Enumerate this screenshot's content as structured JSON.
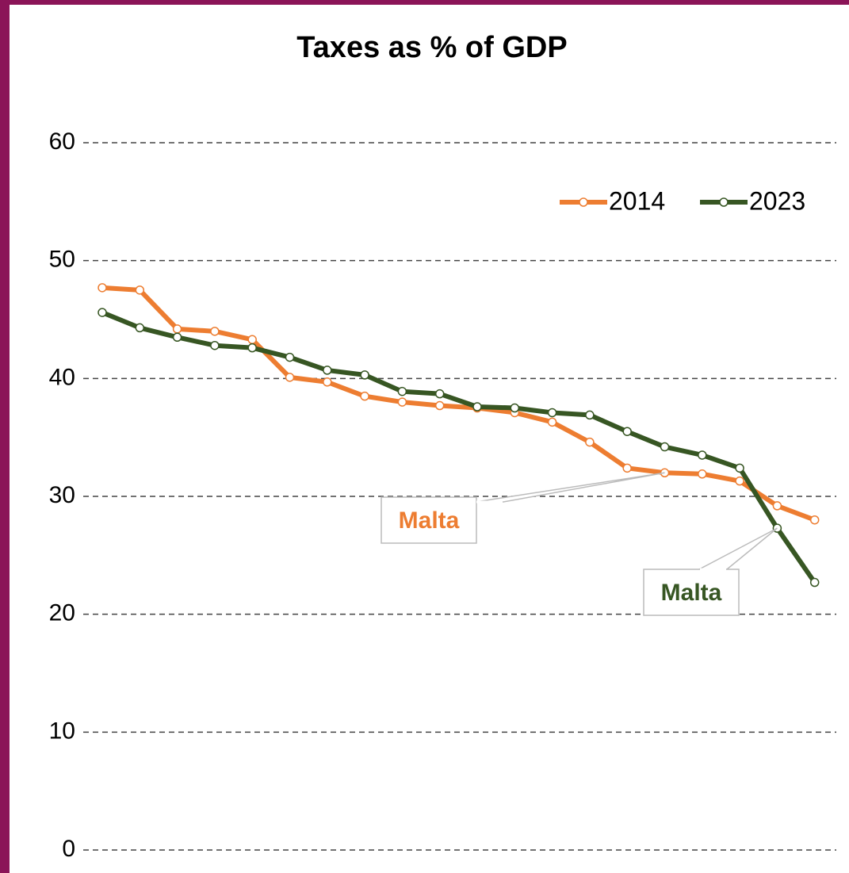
{
  "chart_data": {
    "type": "line",
    "title": "Taxes as % of GDP",
    "categories": [
      null,
      null,
      null,
      null,
      null,
      null,
      null,
      null,
      null,
      null,
      null,
      null,
      null,
      null,
      null,
      null,
      null,
      null,
      null,
      null
    ],
    "series": [
      {
        "name": "2014",
        "color": "#ed7d31",
        "values": [
          47.7,
          47.5,
          44.2,
          44.0,
          43.3,
          40.1,
          39.7,
          38.5,
          38.0,
          37.7,
          37.5,
          37.1,
          36.3,
          34.6,
          32.4,
          32.0,
          31.9,
          31.3,
          29.2,
          28.0
        ]
      },
      {
        "name": "2023",
        "color": "#375623",
        "values": [
          45.6,
          44.3,
          43.5,
          42.8,
          42.6,
          41.8,
          40.7,
          40.3,
          38.9,
          38.7,
          37.6,
          37.5,
          37.1,
          36.9,
          35.5,
          34.2,
          33.5,
          32.4,
          27.3,
          22.7
        ]
      }
    ],
    "annotations": [
      {
        "text": "Malta",
        "color": "#ed7d31"
      },
      {
        "text": "Malta",
        "color": "#375623"
      }
    ],
    "ylim": [
      0,
      60
    ],
    "yticks": [
      0,
      10,
      20,
      30,
      40,
      50,
      60
    ],
    "grid": true,
    "legend": "upper right"
  }
}
